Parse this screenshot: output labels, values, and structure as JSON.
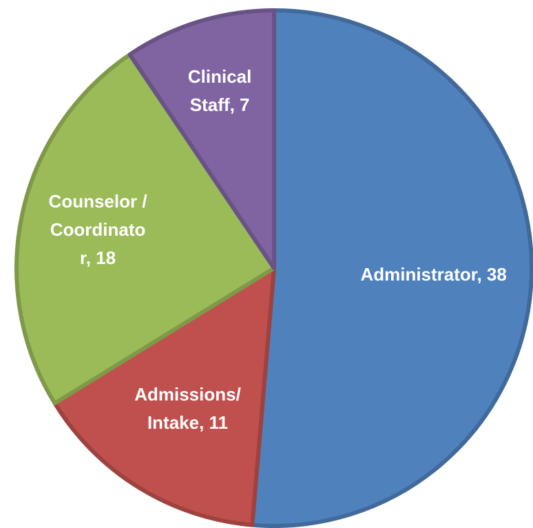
{
  "chart_data": {
    "type": "pie",
    "categories": [
      "Administrator",
      "Admissions/ Intake",
      "Counselor / Coordinator",
      "Clinical Staff"
    ],
    "values": [
      38,
      11,
      18,
      7
    ],
    "value_labels": [
      "Administrator, 38",
      "Admissions/ Intake, 11",
      "Counselor / Coordinator, 18",
      "Clinical Staff, 7"
    ],
    "colors": [
      "#4f81bd",
      "#c0504d",
      "#9bbb59",
      "#8064a2"
    ],
    "start_angle": 0,
    "direction": "clockwise"
  }
}
